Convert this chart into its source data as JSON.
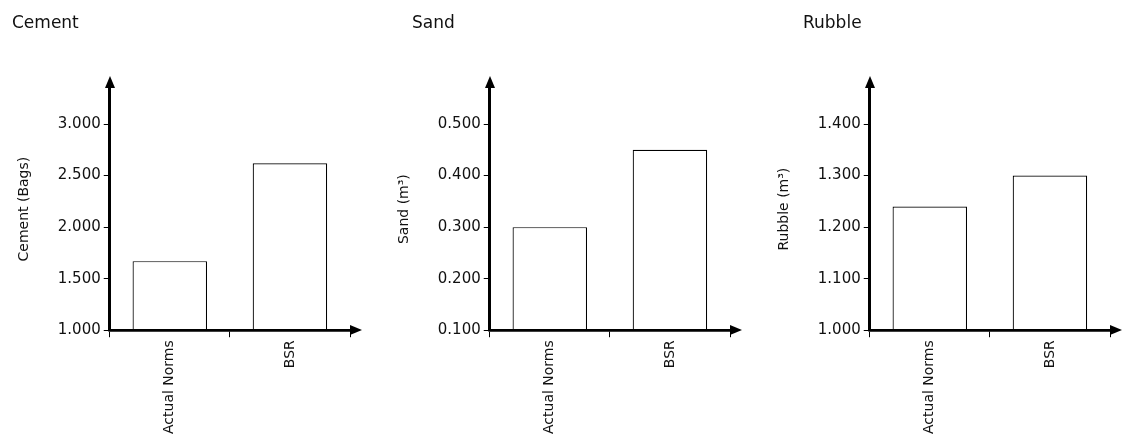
{
  "chart_data": [
    {
      "type": "bar",
      "title": "Cement",
      "ylabel": "Cement (Bags)",
      "categories": [
        "Actual Norms",
        "BSR"
      ],
      "values": [
        1.67,
        2.62
      ],
      "color": "#ffffff",
      "ylim": [
        1,
        3.35
      ],
      "yticks": [
        {
          "value": 1,
          "label": "1.000"
        },
        {
          "value": 1.5,
          "label": "1.500"
        },
        {
          "value": 2,
          "label": "2.000"
        },
        {
          "value": 2.5,
          "label": "2.500"
        },
        {
          "value": 3,
          "label": "3.000"
        }
      ],
      "grid": false,
      "legend": false
    },
    {
      "type": "bar",
      "title": "Sand",
      "ylabel": "Sand (m³)",
      "categories": [
        "Actual Norms",
        "BSR"
      ],
      "values": [
        0.3,
        0.45
      ],
      "color": "#ffffff",
      "ylim": [
        0.1,
        0.57
      ],
      "yticks": [
        {
          "value": 0.1,
          "label": "0.100"
        },
        {
          "value": 0.2,
          "label": "0.200"
        },
        {
          "value": 0.3,
          "label": "0.300"
        },
        {
          "value": 0.4,
          "label": "0.400"
        },
        {
          "value": 0.5,
          "label": "0.500"
        }
      ],
      "grid": false,
      "legend": false
    },
    {
      "type": "bar",
      "title": "Rubble",
      "ylabel": "Rubble (m³)",
      "categories": [
        "Actual Norms",
        "BSR"
      ],
      "values": [
        1.24,
        1.3
      ],
      "color": "#ffffff",
      "ylim": [
        1,
        1.47
      ],
      "yticks": [
        {
          "value": 1,
          "label": "1.000"
        },
        {
          "value": 1.1,
          "label": "1.100"
        },
        {
          "value": 1.2,
          "label": "1.200"
        },
        {
          "value": 1.3,
          "label": "1.300"
        },
        {
          "value": 1.4,
          "label": "1.400"
        }
      ],
      "grid": false,
      "legend": false
    }
  ]
}
